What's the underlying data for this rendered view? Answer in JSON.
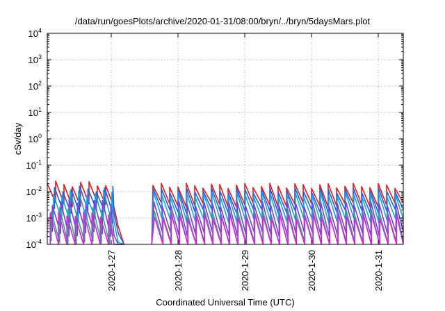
{
  "chart_data": {
    "type": "line",
    "title": "/data/run/goesPlots/archive/2020-01-31/08:00/bryn/../bryn/5daysMars.plot",
    "xlabel": "Coordinated Universal Time (UTC)",
    "ylabel": "cSv/day",
    "y_scale": "log",
    "ylim": [
      0.0001,
      10000
    ],
    "xlim": [
      "2020-01-26T01:00",
      "2020-01-31T09:00"
    ],
    "x_ticks": [
      {
        "value": "2020-01-27T00:00",
        "label": "2020-1-27"
      },
      {
        "value": "2020-01-28T00:00",
        "label": "2020-1-28"
      },
      {
        "value": "2020-01-29T00:00",
        "label": "2020-1-29"
      },
      {
        "value": "2020-01-30T00:00",
        "label": "2020-1-30"
      },
      {
        "value": "2020-01-31T00:00",
        "label": "2020-1-31"
      }
    ],
    "y_ticks": [
      {
        "value": 10000,
        "base": "10",
        "exp": "4"
      },
      {
        "value": 1000,
        "base": "10",
        "exp": "3"
      },
      {
        "value": 100,
        "base": "10",
        "exp": "2"
      },
      {
        "value": 10,
        "base": "10",
        "exp": "1"
      },
      {
        "value": 1,
        "base": "10",
        "exp": "0"
      },
      {
        "value": 0.1,
        "base": "10",
        "exp": "-1"
      },
      {
        "value": 0.01,
        "base": "10",
        "exp": "-2"
      },
      {
        "value": 0.001,
        "base": "10",
        "exp": "-3"
      },
      {
        "value": 0.0001,
        "base": "10",
        "exp": "-4"
      }
    ],
    "grid": true,
    "series": [
      {
        "color": "#e8191a",
        "peak": 0.02,
        "low": 0.0032
      },
      {
        "color": "#1f5fe0",
        "peak": 0.013,
        "low": 0.0018
      },
      {
        "color": "#1aa0e6",
        "peak": 0.009,
        "low": 0.0008
      },
      {
        "color": "#7a3ce0",
        "peak": 0.004,
        "low": 0.00025
      },
      {
        "color": "#2aaa88",
        "peak": 0.002,
        "low": 0.00011
      },
      {
        "color": "#e01ee0",
        "peak": 0.0014,
        "low": 7e-05
      }
    ],
    "sawtooth": {
      "period_hours": 3,
      "gap_start": "2020-01-27T01:00",
      "gap_end": "2020-01-27T15:00",
      "data_end": "2020-01-31T09:00"
    }
  }
}
